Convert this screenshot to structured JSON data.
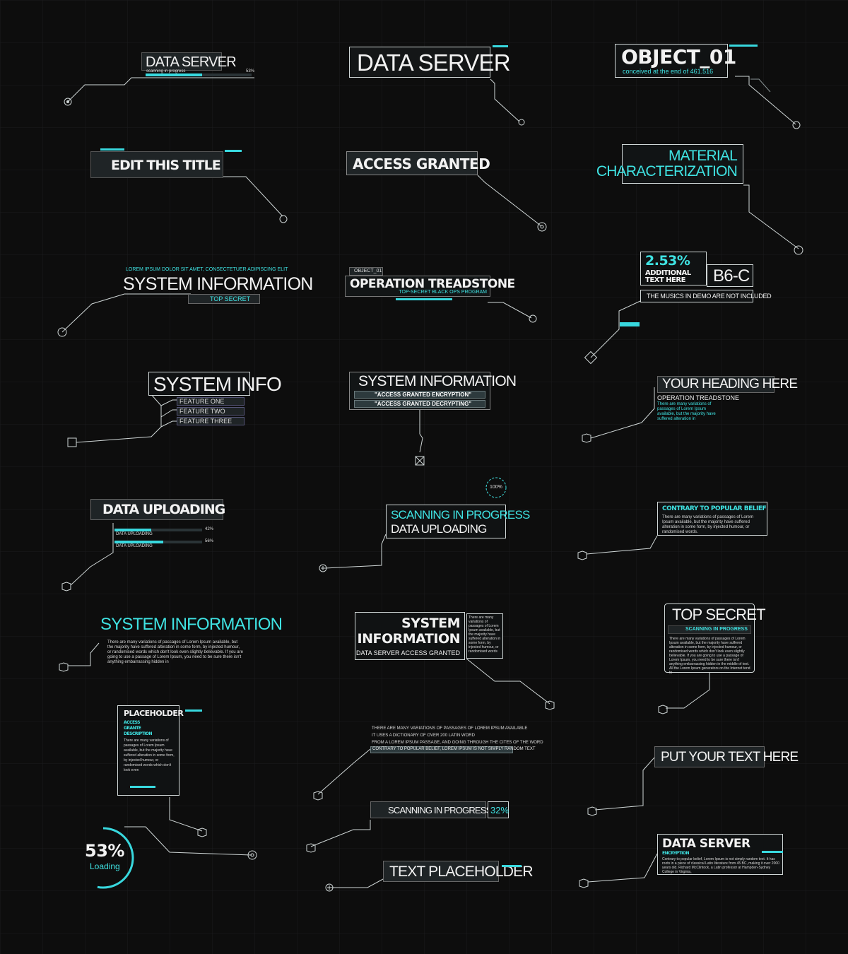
{
  "colors": {
    "background": "#0d0d0d",
    "accent": "#3fe3e3",
    "line": "#cfd6d6",
    "panel": "#1f2426"
  },
  "panels": {
    "p1": {
      "title": "DATA SERVER",
      "status": "scanning in progress",
      "percent": "53%",
      "progress": 0.53
    },
    "p2": {
      "title": "DATA SERVER"
    },
    "p3": {
      "title": "OBJECT_01",
      "subtitle": "conceived at the end of 461.516"
    },
    "p4": {
      "title": "EDIT THIS TITLE"
    },
    "p5": {
      "title": "ACCESS GRANTED"
    },
    "p6": {
      "line1": "MATERIAL",
      "line2": "CHARACTERIZATION"
    },
    "p7": {
      "kicker": "LOREM IPSUM DOLOR SIT AMET, CONSECTETUER ADIPISCING ELIT",
      "title": "SYSTEM INFORMATION",
      "tag": "TOP SECRET"
    },
    "p8": {
      "tag": "OBJECT_01",
      "title": "OPERATION TREADSTONE",
      "subtitle": "TOP-SECRET BLACK OPS PROGRAM"
    },
    "p9": {
      "percent": "2.53%",
      "line1": "ADDITIONAL",
      "line2": "TEXT HERE",
      "code": "B6-C",
      "note": "THE MUSICS IN DEMO ARE NOT INCLUDED"
    },
    "p10": {
      "title": "SYSTEM INFO",
      "features": [
        "FEATURE ONE",
        "FEATURE TWO",
        "FEATURE THREE"
      ]
    },
    "p11": {
      "title": "SYSTEM INFORMATION",
      "line1": "\"ACCESS GRANTED ENCRYPTION\"",
      "line2": "\"ACCESS GRANTED DECRYPTING\""
    },
    "p12": {
      "title": "YOUR HEADING HERE",
      "subtitle": "OPERATION TREADSTONE",
      "body": "There are many variations of passages of Lorem Ipsum available, but the majority have suffered alteration in"
    },
    "p13": {
      "title": "DATA UPLOADING",
      "rows": [
        {
          "label": "DATA UPLOADING",
          "percent": "42%",
          "progress": 0.42
        },
        {
          "label": "DATA UPLOADING",
          "percent": "56%",
          "progress": 0.56
        }
      ]
    },
    "p14": {
      "line1": "SCANNING IN PROGRESS",
      "line2": "DATA UPLOADING",
      "badge": "100%"
    },
    "p15": {
      "title": "CONTRARY TO POPULAR BELIEF",
      "body": "There are many variations of passages of Lorem Ipsum available, but the majority have suffered alteration in some form, by injected humour, or randomised words."
    },
    "p16": {
      "title": "SYSTEM INFORMATION",
      "body": "There are many variations of passages of Lorem Ipsum available, but the majority have suffered alteration in some form, by injected humour, or randomised words which don't look even slightly believable. If you are going to use a passage of Lorem Ipsum, you need to be sure there isn't anything embarrassing hidden in"
    },
    "p17": {
      "line1": "SYSTEM",
      "line2": "INFORMATION",
      "line3": "DATA SERVER ACCESS GRANTED",
      "side": "There are many variations of passages of Lorem Ipsum available, but the majority have suffered alteration in some form, by injected humour, or randomised words"
    },
    "p18": {
      "title": "TOP SECRET",
      "subtitle": "SCANNING IN PROGRESS",
      "body": "There are many variations of passages of Lorem Ipsum available, but the majority have suffered alteration in some form, by injected humour, or randomised words which don't look even slightly believable. If you are going to use a passage of Lorem Ipsum, you need to be sure there isn't anything embarrassing hidden in the middle of text. All the Lorem Ipsum generators on the Internet tend to"
    },
    "p19": {
      "title": "PLACEHOLDER",
      "line1": "ACCESS",
      "line2": "GRANTE",
      "line3": "DESCRIPTION",
      "body": "There are many variations of passages of Lorem Ipsum available, but the majority have suffered alteration in some form, by injected humour, or randomised words which don't look even"
    },
    "p20": {
      "lines": [
        "THERE ARE MANY VARIATIONS OF PASSAGES OF LOREM IPSUM AVAILABLE",
        "IT USES A DICTIONARY OF OVER 200 LATIN WORD",
        "FROM A LOREM IPSUM PASSAGE, AND GOING THROUGH THE CITES OF THE WORD",
        "CONTRARY TO POPULAR BELIEF, LOREM IPSUM IS NOT SIMPLY RANDOM TEXT"
      ]
    },
    "p21": {
      "title": "PUT YOUR TEXT HERE"
    },
    "p22": {
      "label": "SCANNING IN PROGRESS",
      "percent": "32%"
    },
    "p23": {
      "percent": "53%",
      "label": "Loading",
      "progress": 0.53
    },
    "p24": {
      "title": "TEXT PLACEHOLDER"
    },
    "p25": {
      "title": "DATA SERVER",
      "subtitle": "ENCRYPTION",
      "body": "Contrary to popular belief, Lorem Ipsum is not simply random text. It has roots in a piece of classical Latin literature from 45 BC, making it over 2000 years old. Richard McClintock, a Latin professor at Hampden-Sydney College in Virginia,"
    }
  }
}
